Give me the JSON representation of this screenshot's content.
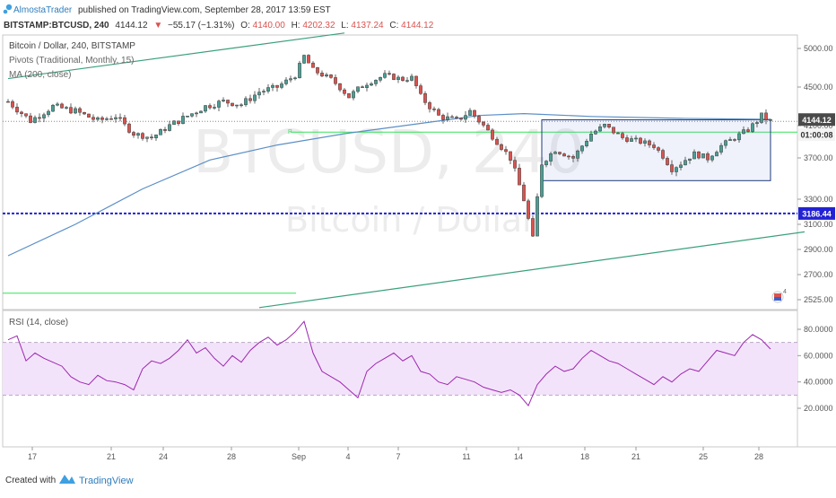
{
  "header": {
    "author": "AlmostaTrader",
    "published": "published on TradingView.com, September 28, 2017 13:59 EST",
    "symbol": "BITSTAMP:BTCUSD, 240",
    "last": "4144.12",
    "change": "−55.17 (−1.31%)",
    "o_label": "O:",
    "o_value": "4140.00",
    "h_label": "H:",
    "h_value": "4202.32",
    "l_label": "L:",
    "l_value": "4137.24",
    "c_label": "C:",
    "c_value": "4144.12"
  },
  "legend": {
    "title": "Bitcoin / Dollar, 240, BITSTAMP",
    "pivots": "Pivots (Traditional, Monthly, 15)",
    "ma": "MA (200, close)",
    "pivot_marker": "P"
  },
  "watermark": {
    "ticker": "BTCUSD, 240",
    "name": "Bitcoin / Dollar"
  },
  "price_badges": {
    "last": "4144.12",
    "countdown": "01:00:08",
    "level": "3186.44"
  },
  "rsi_label": "RSI (14, close)",
  "alert_count": "4",
  "footer": {
    "created_with": "Created with",
    "brand": "TradingView"
  },
  "colors": {
    "up": "#4a9e94",
    "down": "#d9534f",
    "candle_body": "#3d3d3d",
    "ma": "#5b8fc7",
    "trendline": "#3aa07a",
    "pivot": "#35e35a",
    "support": "#2222d4",
    "rsi": "#9c27b0",
    "rsi_band": "#f3e3fa",
    "box": "#1f3a7a"
  },
  "chart_data": [
    {
      "type": "candlestick",
      "title": "Bitcoin / Dollar, 240, BITSTAMP",
      "y_ticks": [
        "5000.00",
        "4500.00",
        "4100.00",
        "3700.00",
        "3300.00",
        "3100.00",
        "2900.00",
        "2700.00",
        "2525.00"
      ],
      "x_ticks": [
        "17",
        "21",
        "24",
        "28",
        "Sep",
        "4",
        "7",
        "11",
        "14",
        "18",
        "21",
        "25",
        "28"
      ],
      "price_path": [
        [
          0,
          4350
        ],
        [
          5,
          4150
        ],
        [
          10,
          4300
        ],
        [
          15,
          4250
        ],
        [
          20,
          4150
        ],
        [
          24,
          4200
        ],
        [
          28,
          4000
        ],
        [
          32,
          3950
        ],
        [
          36,
          4100
        ],
        [
          40,
          4200
        ],
        [
          44,
          4300
        ],
        [
          48,
          4350
        ],
        [
          52,
          4320
        ],
        [
          56,
          4450
        ],
        [
          60,
          4500
        ],
        [
          64,
          4650
        ],
        [
          66,
          4900
        ],
        [
          68,
          4720
        ],
        [
          72,
          4600
        ],
        [
          76,
          4400
        ],
        [
          80,
          4550
        ],
        [
          84,
          4650
        ],
        [
          88,
          4600
        ],
        [
          90,
          4620
        ],
        [
          92,
          4400
        ],
        [
          96,
          4200
        ],
        [
          100,
          4150
        ],
        [
          103,
          4250
        ],
        [
          106,
          4100
        ],
        [
          109,
          3900
        ],
        [
          112,
          3700
        ],
        [
          115,
          3300
        ],
        [
          117,
          2975
        ],
        [
          119,
          3650
        ],
        [
          122,
          3800
        ],
        [
          126,
          3700
        ],
        [
          130,
          4000
        ],
        [
          133,
          4100
        ],
        [
          137,
          3950
        ],
        [
          141,
          3900
        ],
        [
          144,
          3850
        ],
        [
          148,
          3600
        ],
        [
          150,
          3650
        ],
        [
          153,
          3750
        ],
        [
          156,
          3700
        ],
        [
          159,
          3850
        ],
        [
          162,
          3950
        ],
        [
          165,
          4050
        ],
        [
          168,
          4200
        ],
        [
          170,
          4144
        ]
      ],
      "moving_average": [
        [
          0,
          2850
        ],
        [
          15,
          3100
        ],
        [
          30,
          3400
        ],
        [
          45,
          3680
        ],
        [
          60,
          3860
        ],
        [
          75,
          4000
        ],
        [
          90,
          4110
        ],
        [
          105,
          4205
        ],
        [
          115,
          4225
        ],
        [
          130,
          4195
        ],
        [
          150,
          4175
        ],
        [
          170,
          4165
        ]
      ],
      "range_box": {
        "x0": 119,
        "x1": 170,
        "y0": 3480,
        "y1": 4160
      },
      "pivot_level": 4020,
      "pivot_level_left": 2570,
      "support_level": 3186.44,
      "last_price": 4144.12,
      "trendline_upper": [
        [
          0,
          4610
        ],
        [
          75,
          5200
        ]
      ],
      "trendline_lower": [
        [
          56,
          2470
        ],
        [
          170,
          3040
        ]
      ]
    },
    {
      "type": "line",
      "title": "RSI (14, close)",
      "y_ticks": [
        "80.0000",
        "60.0000",
        "40.0000",
        "20.0000"
      ],
      "bands": [
        30,
        70
      ],
      "values": [
        [
          0,
          72
        ],
        [
          2,
          75
        ],
        [
          4,
          56
        ],
        [
          6,
          62
        ],
        [
          8,
          58
        ],
        [
          10,
          55
        ],
        [
          12,
          52
        ],
        [
          14,
          44
        ],
        [
          16,
          40
        ],
        [
          18,
          38
        ],
        [
          20,
          45
        ],
        [
          22,
          41
        ],
        [
          24,
          40
        ],
        [
          26,
          38
        ],
        [
          28,
          34
        ],
        [
          30,
          50
        ],
        [
          32,
          56
        ],
        [
          34,
          54
        ],
        [
          36,
          58
        ],
        [
          38,
          64
        ],
        [
          40,
          72
        ],
        [
          42,
          62
        ],
        [
          44,
          66
        ],
        [
          46,
          58
        ],
        [
          48,
          52
        ],
        [
          50,
          60
        ],
        [
          52,
          55
        ],
        [
          54,
          64
        ],
        [
          56,
          70
        ],
        [
          58,
          74
        ],
        [
          60,
          68
        ],
        [
          62,
          72
        ],
        [
          64,
          78
        ],
        [
          66,
          86
        ],
        [
          68,
          62
        ],
        [
          70,
          48
        ],
        [
          72,
          44
        ],
        [
          74,
          40
        ],
        [
          76,
          34
        ],
        [
          78,
          28
        ],
        [
          80,
          48
        ],
        [
          82,
          54
        ],
        [
          84,
          58
        ],
        [
          86,
          62
        ],
        [
          88,
          56
        ],
        [
          90,
          60
        ],
        [
          92,
          48
        ],
        [
          94,
          46
        ],
        [
          96,
          40
        ],
        [
          98,
          38
        ],
        [
          100,
          44
        ],
        [
          102,
          42
        ],
        [
          104,
          40
        ],
        [
          106,
          36
        ],
        [
          108,
          34
        ],
        [
          110,
          32
        ],
        [
          112,
          34
        ],
        [
          114,
          30
        ],
        [
          116,
          22
        ],
        [
          118,
          38
        ],
        [
          120,
          46
        ],
        [
          122,
          52
        ],
        [
          124,
          48
        ],
        [
          126,
          50
        ],
        [
          128,
          58
        ],
        [
          130,
          64
        ],
        [
          132,
          60
        ],
        [
          134,
          56
        ],
        [
          136,
          54
        ],
        [
          138,
          50
        ],
        [
          140,
          46
        ],
        [
          142,
          42
        ],
        [
          144,
          38
        ],
        [
          146,
          44
        ],
        [
          148,
          40
        ],
        [
          150,
          46
        ],
        [
          152,
          50
        ],
        [
          154,
          48
        ],
        [
          156,
          56
        ],
        [
          158,
          64
        ],
        [
          160,
          62
        ],
        [
          162,
          60
        ],
        [
          164,
          70
        ],
        [
          166,
          76
        ],
        [
          168,
          72
        ],
        [
          170,
          65
        ]
      ]
    }
  ]
}
